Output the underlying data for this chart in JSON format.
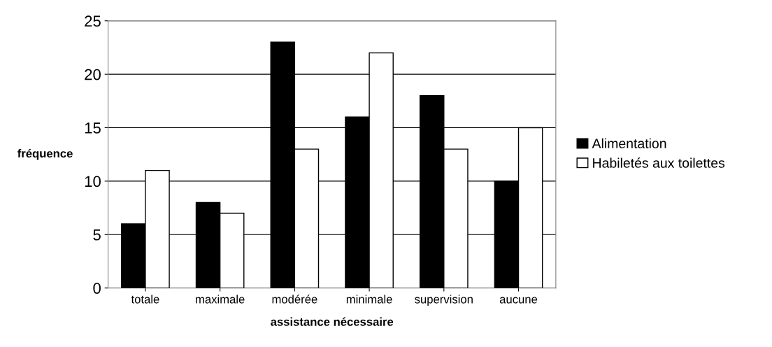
{
  "chart_data": {
    "type": "bar",
    "xlabel": "assistance nécessaire",
    "ylabel": "fréquence",
    "categories": [
      "totale",
      "maximale",
      "modérée",
      "minimale",
      "supervision",
      "aucune"
    ],
    "series": [
      {
        "name": "Alimentation",
        "color": "#000000",
        "values": [
          6,
          8,
          23,
          16,
          18,
          10
        ]
      },
      {
        "name": "Habiletés aux toilettes",
        "color": "#ffffff",
        "values": [
          11,
          7,
          13,
          22,
          13,
          15
        ]
      }
    ],
    "ylim": [
      0,
      25
    ],
    "yticks": [
      0,
      5,
      10,
      15,
      20,
      25
    ],
    "grid": "y",
    "legend": "right"
  }
}
